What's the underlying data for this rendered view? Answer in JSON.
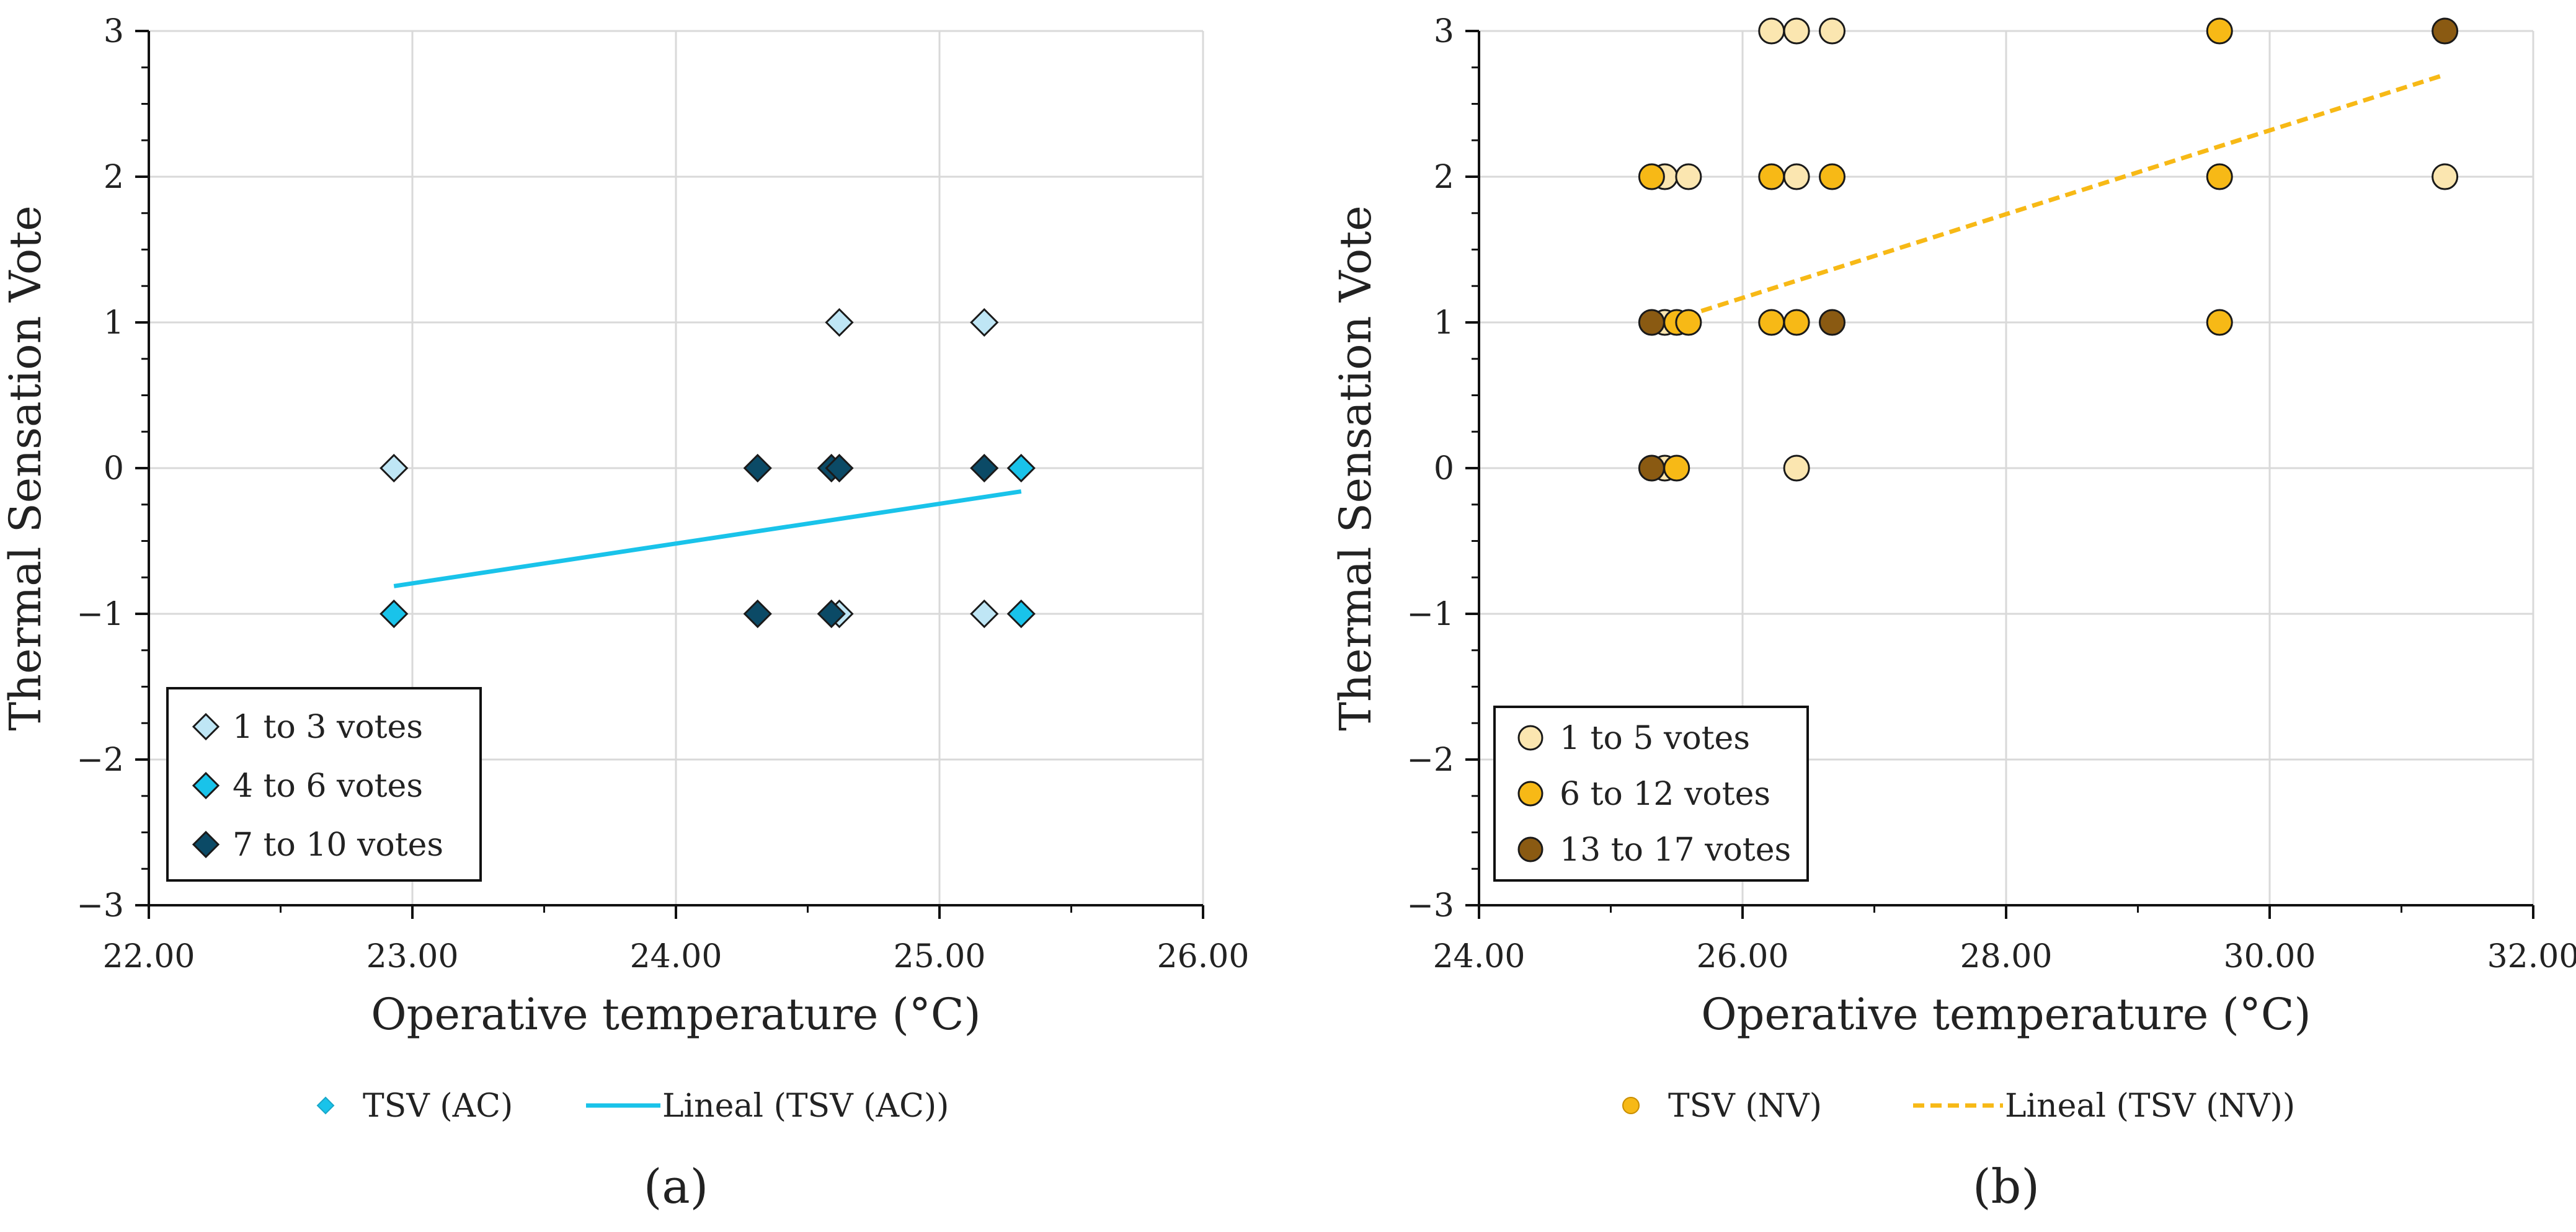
{
  "chart_data": [
    {
      "panel_label": "(a)",
      "type": "scatter",
      "xlabel": "Operative temperature (°C)",
      "ylabel": "Thermal Sensation Vote",
      "xlim": [
        22,
        26
      ],
      "ylim": [
        -3,
        3
      ],
      "x_ticks": [
        "22.00",
        "23.00",
        "24.00",
        "25.00",
        "26.00"
      ],
      "y_ticks": [
        "−3",
        "−2",
        "−1",
        "0",
        "1",
        "2",
        "3"
      ],
      "grid": true,
      "marker": "diamond",
      "colors": {
        "light": "#bfe6f5",
        "mid": "#19c3ea",
        "dark": "#0b4a66",
        "trend": "#19c3ea",
        "grid": "#d9d9d9"
      },
      "inner_legend": {
        "placement": "bottom-left",
        "entries": [
          "1 to 3 votes",
          "4 to 6 votes",
          "7 to 10 votes"
        ]
      },
      "outer_legend": {
        "series_label": "TSV (AC)",
        "trend_label": "Lineal (TSV (AC))"
      },
      "series": [
        {
          "name": "1 to 3 votes",
          "color_key": "light",
          "points": [
            [
              22.93,
              0
            ],
            [
              24.62,
              1
            ],
            [
              25.17,
              1
            ],
            [
              25.17,
              -1
            ],
            [
              24.62,
              -1
            ]
          ]
        },
        {
          "name": "4 to 6 votes",
          "color_key": "mid",
          "points": [
            [
              22.93,
              -1
            ],
            [
              25.31,
              0
            ],
            [
              25.31,
              -1
            ]
          ]
        },
        {
          "name": "7 to 10 votes",
          "color_key": "dark",
          "points": [
            [
              24.31,
              0
            ],
            [
              24.59,
              0
            ],
            [
              24.62,
              0
            ],
            [
              25.17,
              0
            ],
            [
              24.31,
              -1
            ],
            [
              24.59,
              -1
            ]
          ]
        }
      ],
      "trendline": {
        "name": "Lineal (TSV (AC))",
        "style": "solid",
        "x": [
          22.93,
          25.31
        ],
        "y": [
          -0.81,
          -0.16
        ]
      }
    },
    {
      "panel_label": "(b)",
      "type": "scatter",
      "xlabel": "Operative temperature (°C)",
      "ylabel": "Thermal Sensation Vote",
      "xlim": [
        24,
        32
      ],
      "ylim": [
        -3,
        3
      ],
      "x_ticks": [
        "24.00",
        "26.00",
        "28.00",
        "30.00",
        "32.00"
      ],
      "y_ticks": [
        "−3",
        "−2",
        "−1",
        "0",
        "1",
        "2",
        "3"
      ],
      "grid": true,
      "marker": "circle",
      "colors": {
        "light": "#fbe6b0",
        "mid": "#f7b916",
        "dark": "#8a5a12",
        "trend": "#f7b916",
        "grid": "#d9d9d9"
      },
      "inner_legend": {
        "placement": "bottom-left",
        "entries": [
          "1 to 5 votes",
          "6 to 12 votes",
          "13 to 17 votes"
        ]
      },
      "outer_legend": {
        "series_label": "TSV (NV)",
        "trend_label": "Lineal (TSV (NV))"
      },
      "series": [
        {
          "name": "1 to 5 votes",
          "color_key": "light",
          "points": [
            [
              26.22,
              3
            ],
            [
              26.41,
              3
            ],
            [
              26.68,
              3
            ],
            [
              25.41,
              2
            ],
            [
              25.59,
              2
            ],
            [
              26.41,
              2
            ],
            [
              31.33,
              2
            ],
            [
              25.41,
              1
            ],
            [
              25.41,
              0
            ],
            [
              26.41,
              0
            ]
          ]
        },
        {
          "name": "6 to 12 votes",
          "color_key": "mid",
          "points": [
            [
              29.62,
              3
            ],
            [
              25.31,
              2
            ],
            [
              26.22,
              2
            ],
            [
              26.68,
              2
            ],
            [
              29.62,
              2
            ],
            [
              25.5,
              1
            ],
            [
              25.59,
              1
            ],
            [
              26.22,
              1
            ],
            [
              26.41,
              1
            ],
            [
              29.62,
              1
            ],
            [
              25.5,
              0
            ]
          ]
        },
        {
          "name": "13 to 17 votes",
          "color_key": "dark",
          "points": [
            [
              31.33,
              3
            ],
            [
              25.31,
              1
            ],
            [
              26.68,
              1
            ],
            [
              25.31,
              0
            ]
          ]
        }
      ],
      "trendline": {
        "name": "Lineal (TSV (NV))",
        "style": "dashed",
        "x": [
          25.31,
          31.33
        ],
        "y": [
          0.97,
          2.7
        ]
      }
    }
  ]
}
